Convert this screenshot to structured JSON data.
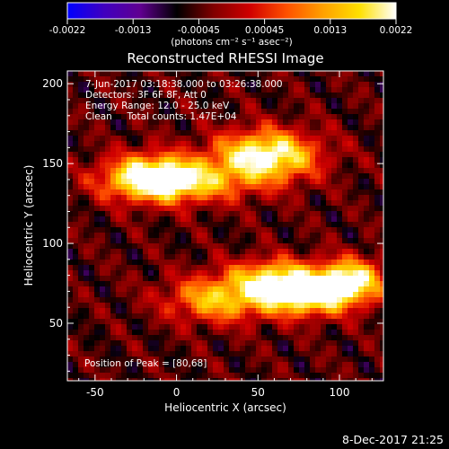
{
  "colorbar": {
    "ticks": [
      "-0.0022",
      "-0.0013",
      "-0.00045",
      "0.00045",
      "0.0013",
      "0.0022"
    ],
    "unit_label": "(photons cm⁻² s⁻¹ asec⁻²)",
    "colors": [
      "#0000ff",
      "#4000c0",
      "#600090",
      "#000000",
      "#800000",
      "#d00000",
      "#ff5000",
      "#ffa000",
      "#ffe000",
      "#ffffff"
    ]
  },
  "chart_data": {
    "type": "heatmap",
    "title": "Reconstructed RHESSI Image",
    "xlabel": "Heliocentric X (arcsec)",
    "ylabel": "Heliocentric Y (arcsec)",
    "xlim": [
      -67,
      127
    ],
    "ylim": [
      14,
      208
    ],
    "xticks": [
      "-50",
      "0",
      "50",
      "100"
    ],
    "xtick_values": [
      -50,
      0,
      50,
      100
    ],
    "yticks": [
      "50",
      "100",
      "150",
      "200"
    ],
    "ytick_values": [
      50,
      100,
      150,
      200
    ],
    "annotations": [
      "7-Jun-2017 03:18:38.000 to 03:26:38.000",
      "Detectors: 3F 6F 8F, Att 0",
      "Energy Range: 12.0 - 25.0 keV",
      "Clean     Total counts: 1.47E+04"
    ],
    "peak_label": "Position of Peak = [80,68]",
    "peak": [
      80,
      68
    ],
    "vmin": -0.0022,
    "vmax": 0.0022,
    "sources": [
      {
        "x": -15,
        "y": 142,
        "amp": 0.0018,
        "sx": 20,
        "sy": 10
      },
      {
        "x": 55,
        "y": 155,
        "amp": 0.0021,
        "sx": 22,
        "sy": 11
      },
      {
        "x": 5,
        "y": 138,
        "amp": 0.0012,
        "sx": 30,
        "sy": 9
      },
      {
        "x": 25,
        "y": 65,
        "amp": 0.0014,
        "sx": 22,
        "sy": 10
      },
      {
        "x": 80,
        "y": 68,
        "amp": 0.0022,
        "sx": 22,
        "sy": 9
      },
      {
        "x": 108,
        "y": 78,
        "amp": 0.0016,
        "sx": 14,
        "sy": 9
      },
      {
        "x": 60,
        "y": 80,
        "amp": 0.0012,
        "sx": 20,
        "sy": 8
      }
    ]
  },
  "timestamp": "8-Dec-2017 21:25"
}
